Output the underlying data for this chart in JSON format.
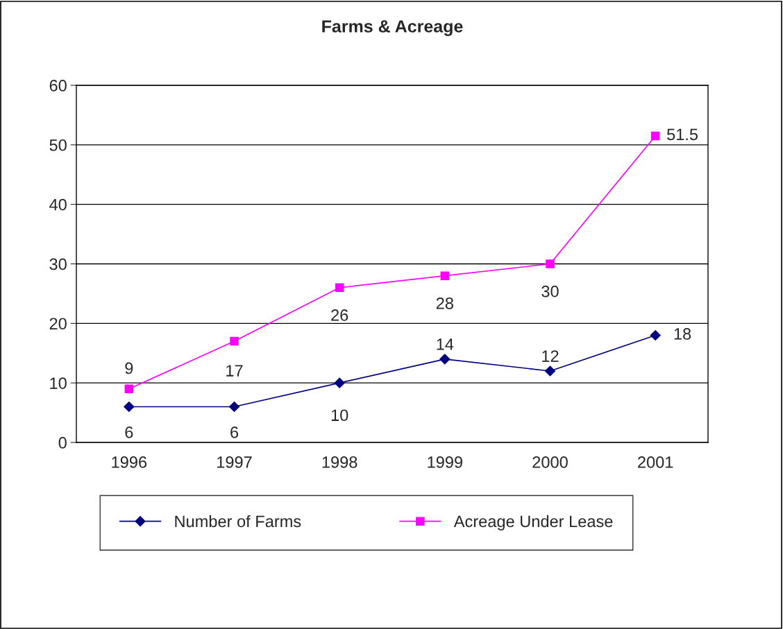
{
  "chart_data": {
    "type": "line",
    "title": "Farms & Acreage",
    "categories": [
      "1996",
      "1997",
      "1998",
      "1999",
      "2000",
      "2001"
    ],
    "series": [
      {
        "name": "Number of Farms",
        "color": "#000080",
        "marker": "diamond",
        "values": [
          6,
          6,
          10,
          14,
          12,
          18
        ]
      },
      {
        "name": "Acreage Under Lease",
        "color": "#ff00ff",
        "marker": "square",
        "values": [
          9,
          17,
          26,
          28,
          30,
          51.5
        ]
      }
    ],
    "ylim": [
      0,
      60
    ],
    "yticks": [
      0,
      10,
      20,
      30,
      40,
      50,
      60
    ],
    "grid": "y",
    "legend": "bottom",
    "data_labels": true
  }
}
